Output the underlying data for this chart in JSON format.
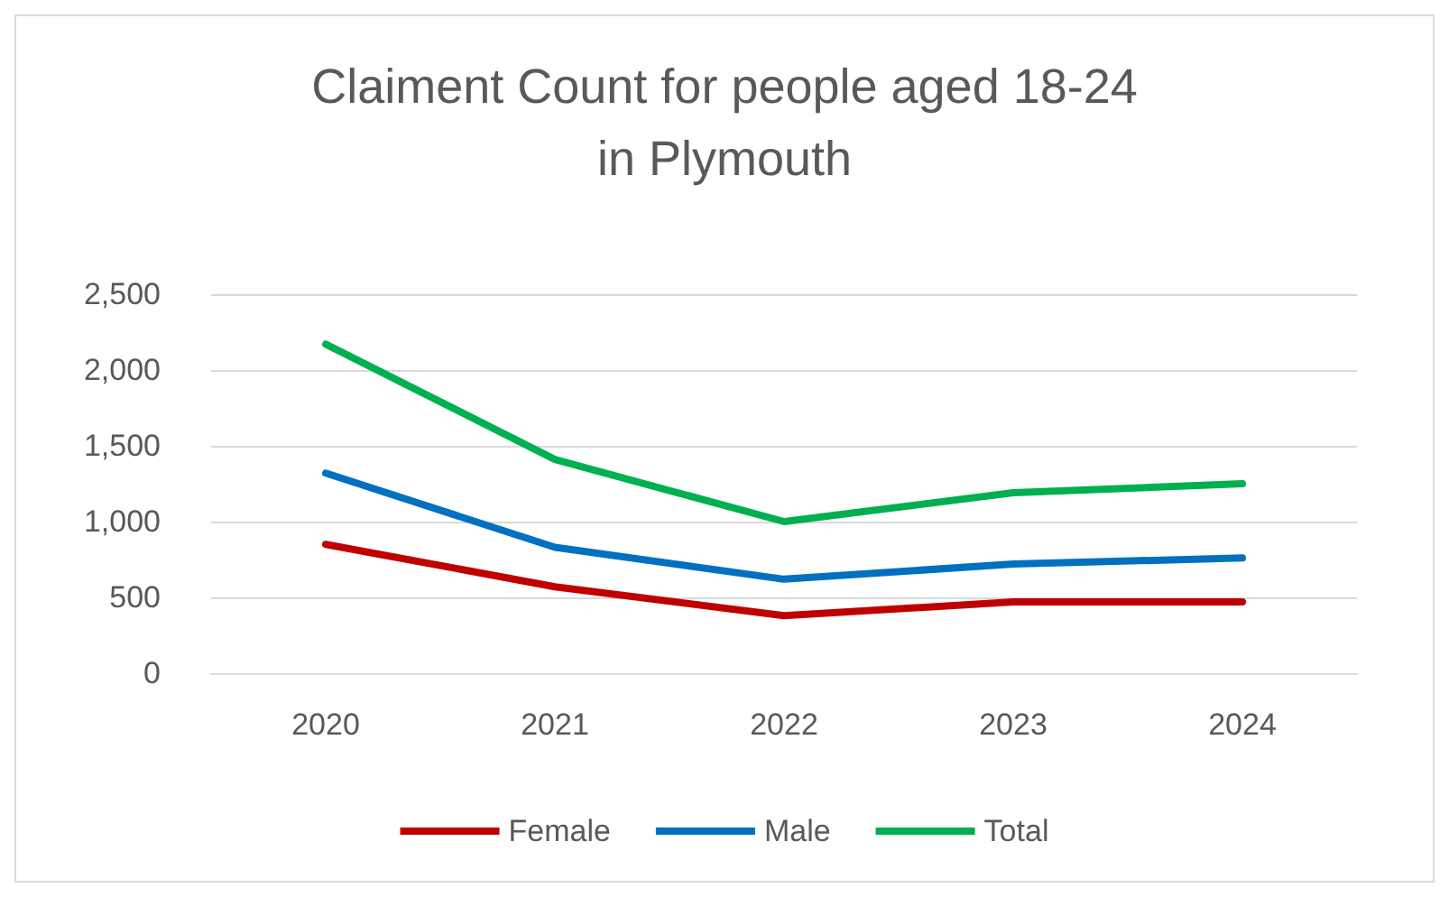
{
  "chart_data": {
    "type": "line",
    "title": "Claiment Count for people aged 18-24\nin Plymouth",
    "categories": [
      "2020",
      "2021",
      "2022",
      "2023",
      "2024"
    ],
    "series": [
      {
        "name": "Female",
        "color": "#c00000",
        "values": [
          850,
          570,
          380,
          470,
          470
        ]
      },
      {
        "name": "Male",
        "color": "#0070c0",
        "values": [
          1320,
          830,
          620,
          720,
          760
        ]
      },
      {
        "name": "Total",
        "color": "#00b050",
        "values": [
          2170,
          1410,
          1000,
          1190,
          1250
        ]
      }
    ],
    "ylim": [
      0,
      2500
    ],
    "yticks": [
      0,
      500,
      {
        "value": 1000,
        "label": "1,000"
      },
      {
        "value": 1500,
        "label": "1,500"
      },
      {
        "value": 2000,
        "label": "2,000"
      },
      {
        "value": 2500,
        "label": "2,500"
      }
    ],
    "grid": "y",
    "legend": "bottom",
    "marker": "none",
    "line_style": "solid"
  }
}
